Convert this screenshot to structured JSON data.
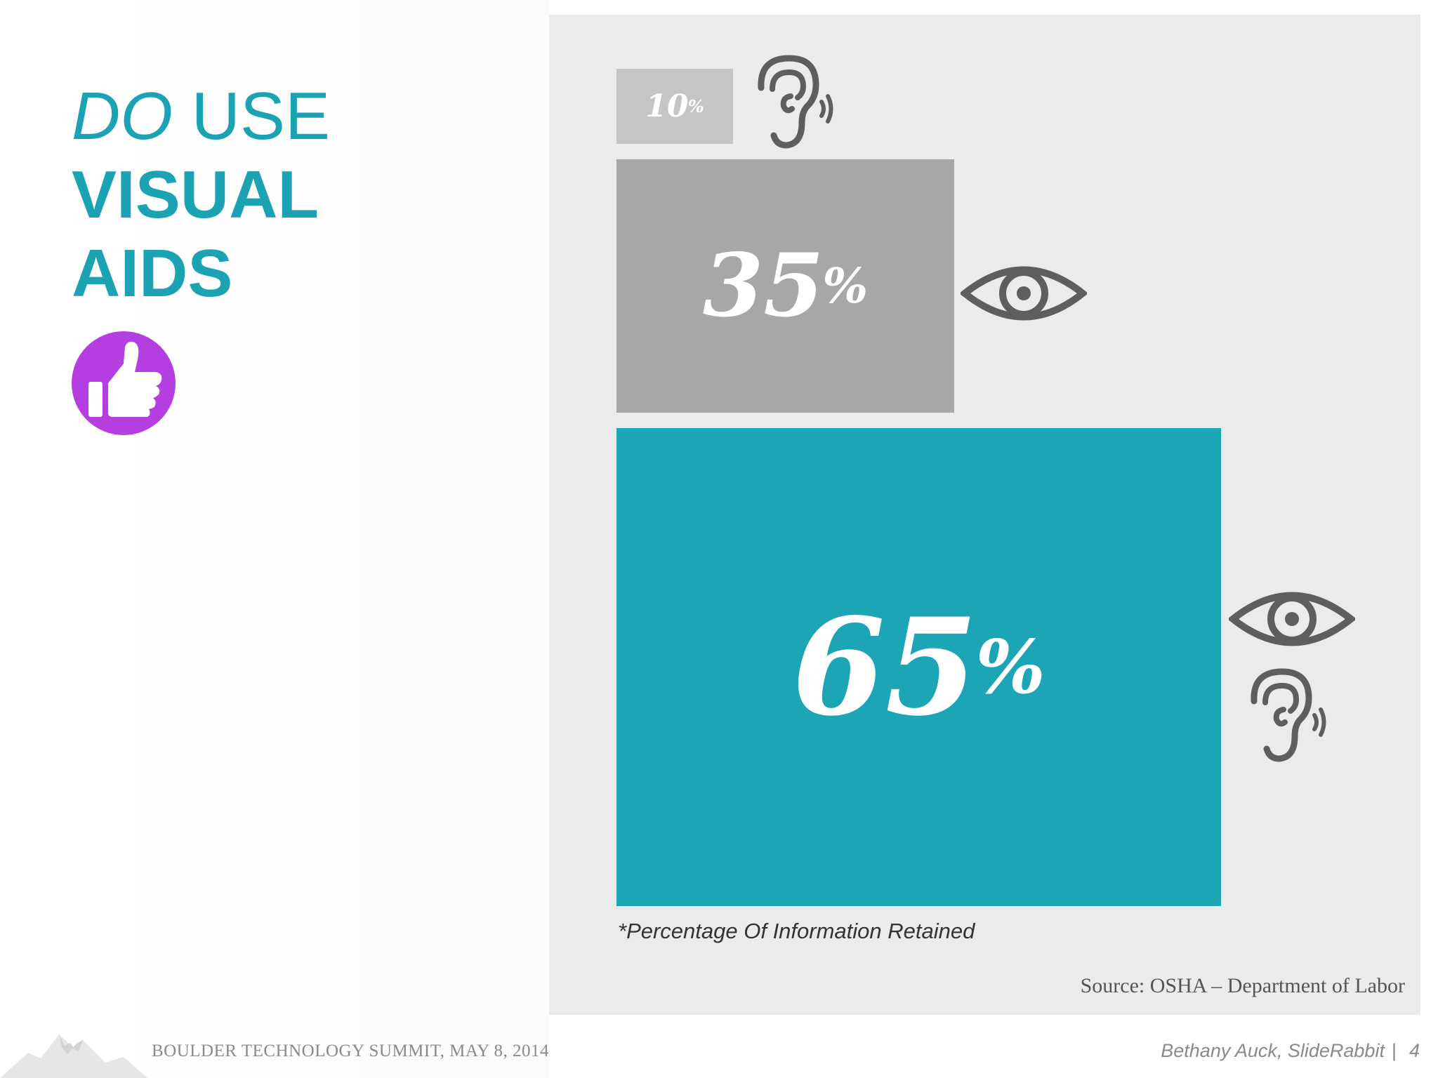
{
  "title": {
    "line1_italic": "DO",
    "line1_rest": " USE",
    "line2": "VISUAL",
    "line3": "AIDS"
  },
  "icons": {
    "thumb": "thumbs-up-icon",
    "ear": "ear-icon",
    "eye": "eye-icon"
  },
  "colors": {
    "accent": "#1ba3b4",
    "thumb_bg": "#b43ee0",
    "bar_10": "#c5c4c6",
    "bar_35": "#a7a6a9",
    "bar_65": "#1ba5b5",
    "panel": "#ebeaec",
    "icon": "#5e5e60"
  },
  "chart_data": {
    "type": "bar",
    "categories": [
      "Hearing",
      "Seeing",
      "Seeing + Hearing"
    ],
    "values": [
      10,
      35,
      65
    ],
    "value_labels": [
      "10",
      "35",
      "65"
    ],
    "unit": "%",
    "note": "*Percentage Of Information Retained"
  },
  "source": "Source: OSHA – Department of Labor",
  "footer": {
    "event": "BOULDER TECHNOLOGY SUMMIT, MAY 8, 2014",
    "author": "Bethany Auck, SlideRabbit",
    "separator": "|",
    "page": "4"
  }
}
